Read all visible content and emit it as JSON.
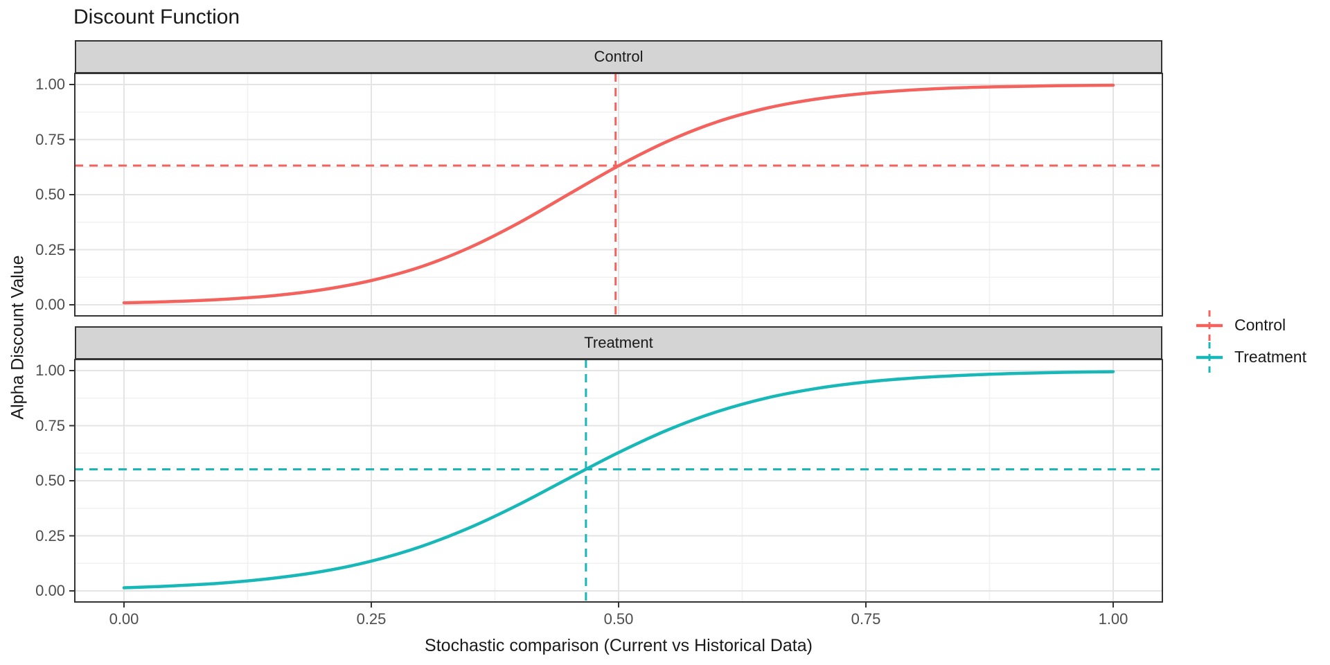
{
  "title": "Discount Function",
  "chart_data": {
    "type": "line",
    "title": "Discount Function",
    "xlabel": "Stochastic comparison (Current vs Historical Data)",
    "ylabel": "Alpha Discount Value",
    "facets": [
      "Control",
      "Treatment"
    ],
    "facet_layout": "rows",
    "legend_position": "right",
    "grid": "major+minor",
    "xlim": [
      -0.05,
      1.05
    ],
    "ylim": [
      -0.05,
      1.05
    ],
    "x_tick_values": [
      0,
      0.25,
      0.5,
      0.75,
      1
    ],
    "x_tick_labels": [
      "0.00",
      "0.25",
      "0.50",
      "0.75",
      "1.00"
    ],
    "y_tick_values": [
      0,
      0.25,
      0.5,
      0.75,
      1
    ],
    "y_tick_labels": [
      "0.00",
      "0.25",
      "0.50",
      "0.75",
      "1.00"
    ],
    "x": [
      0,
      0.05,
      0.1,
      0.15,
      0.2,
      0.25,
      0.3,
      0.35,
      0.4,
      0.45,
      0.5,
      0.55,
      0.6,
      0.65,
      0.7,
      0.75,
      0.8,
      0.85,
      0.9,
      0.95,
      1.0
    ],
    "series": [
      {
        "name": "Control",
        "facet": "Control",
        "color": "#F4625D",
        "line_style": "solid",
        "values": [
          0.009,
          0.015,
          0.025,
          0.041,
          0.068,
          0.11,
          0.172,
          0.261,
          0.374,
          0.503,
          0.631,
          0.743,
          0.831,
          0.893,
          0.934,
          0.96,
          0.976,
          0.986,
          0.991,
          0.995,
          0.997
        ],
        "reference_lines": {
          "style": "dashed",
          "vline_x": 0.497,
          "hline_y": 0.632
        }
      },
      {
        "name": "Treatment",
        "facet": "Treatment",
        "color": "#19B8B8",
        "line_style": "solid",
        "values": [
          0.014,
          0.023,
          0.036,
          0.057,
          0.088,
          0.135,
          0.201,
          0.288,
          0.394,
          0.512,
          0.628,
          0.731,
          0.814,
          0.876,
          0.919,
          0.948,
          0.967,
          0.979,
          0.987,
          0.992,
          0.995
        ],
        "reference_lines": {
          "style": "dashed",
          "vline_x": 0.467,
          "hline_y": 0.552
        }
      }
    ],
    "style": {
      "background": "#FFFFFF",
      "strip_fill": "#D4D4D4",
      "panel_border": "#333333",
      "grid_major": "#E4E4E4",
      "grid_minor": "#F1F1F1",
      "tick_color": "#333333",
      "tick_label_color": "#4D4D4D",
      "text_color": "#1A1A1A"
    }
  }
}
